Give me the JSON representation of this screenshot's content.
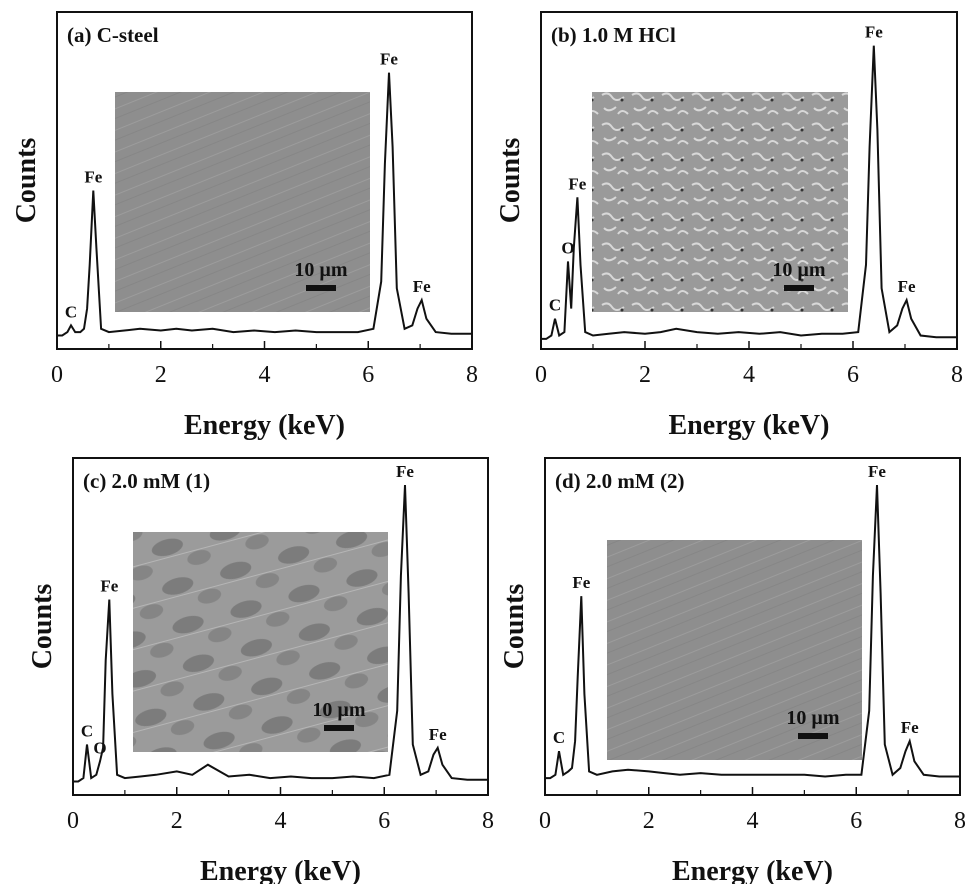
{
  "chart_data": [
    {
      "type": "line",
      "title": "(a) C-steel",
      "xlabel": "Energy (keV)",
      "ylabel": "Counts",
      "xlim": [
        0,
        8
      ],
      "xticks": [
        0,
        2,
        4,
        6,
        8
      ],
      "ylim": [
        0,
        100
      ],
      "x": [
        0,
        0.1,
        0.2,
        0.27,
        0.35,
        0.45,
        0.52,
        0.58,
        0.63,
        0.7,
        0.76,
        0.85,
        1.0,
        1.3,
        1.6,
        2.0,
        2.3,
        2.6,
        3.0,
        3.4,
        3.8,
        4.2,
        4.6,
        5.0,
        5.4,
        5.8,
        6.1,
        6.25,
        6.32,
        6.4,
        6.47,
        6.55,
        6.7,
        6.85,
        6.95,
        7.03,
        7.12,
        7.3,
        7.6,
        8.0
      ],
      "series": [
        {
          "color": "#111111",
          "values": [
            4,
            4,
            5,
            7,
            5,
            5,
            6,
            12,
            25,
            47,
            30,
            6,
            5,
            5.5,
            6,
            5.5,
            6,
            5.5,
            6,
            5,
            5.5,
            5,
            5.5,
            5,
            5,
            5,
            6,
            20,
            55,
            82,
            60,
            18,
            6,
            7,
            12,
            14.5,
            9,
            5,
            4.5,
            4.5
          ]
        }
      ],
      "peak_labels": [
        {
          "text": "C",
          "x": 0.27
        },
        {
          "text": "Fe",
          "x": 0.7
        },
        {
          "text": "Fe",
          "x": 6.4
        },
        {
          "text": "Fe",
          "x": 7.03
        }
      ],
      "inset": {
        "scale_label": "10 µm"
      }
    },
    {
      "type": "line",
      "title": "(b) 1.0 M HCl",
      "xlabel": "Energy (keV)",
      "ylabel": "Counts",
      "xlim": [
        0,
        8
      ],
      "xticks": [
        0,
        2,
        4,
        6,
        8
      ],
      "ylim": [
        0,
        100
      ],
      "x": [
        0,
        0.1,
        0.2,
        0.27,
        0.35,
        0.45,
        0.52,
        0.58,
        0.63,
        0.7,
        0.76,
        0.85,
        1.0,
        1.3,
        1.6,
        2.0,
        2.3,
        2.6,
        3.0,
        3.4,
        3.8,
        4.2,
        4.6,
        5.0,
        5.4,
        5.8,
        6.1,
        6.25,
        6.32,
        6.4,
        6.47,
        6.55,
        6.7,
        6.85,
        6.95,
        7.03,
        7.12,
        7.3,
        7.6,
        8.0
      ],
      "series": [
        {
          "color": "#111111",
          "values": [
            3,
            3,
            4,
            9,
            4,
            5,
            26,
            12,
            30,
            45,
            25,
            5,
            4,
            4.5,
            5,
            4.5,
            5,
            6,
            5,
            4.5,
            5,
            4.5,
            5,
            4,
            4.5,
            4.5,
            5,
            25,
            60,
            90,
            65,
            18,
            5,
            7,
            12,
            14.5,
            9,
            4,
            3.5,
            3.5
          ]
        }
      ],
      "peak_labels": [
        {
          "text": "C",
          "x": 0.27
        },
        {
          "text": "O",
          "x": 0.52
        },
        {
          "text": "Fe",
          "x": 0.7
        },
        {
          "text": "Fe",
          "x": 6.4
        },
        {
          "text": "Fe",
          "x": 7.03
        }
      ],
      "inset": {
        "scale_label": "10 µm"
      }
    },
    {
      "type": "line",
      "title": "(c) 2.0 mM (1)",
      "xlabel": "Energy (keV)",
      "ylabel": "Counts",
      "xlim": [
        0,
        8
      ],
      "xticks": [
        0,
        2,
        4,
        6,
        8
      ],
      "ylim": [
        0,
        100
      ],
      "x": [
        0,
        0.1,
        0.2,
        0.27,
        0.35,
        0.45,
        0.52,
        0.58,
        0.63,
        0.7,
        0.76,
        0.85,
        1.0,
        1.3,
        1.6,
        2.0,
        2.3,
        2.6,
        3.0,
        3.4,
        3.8,
        4.2,
        4.6,
        5.0,
        5.4,
        5.8,
        6.1,
        6.25,
        6.32,
        6.4,
        6.47,
        6.55,
        6.7,
        6.85,
        6.95,
        7.03,
        7.12,
        7.3,
        7.6,
        8.0
      ],
      "series": [
        {
          "color": "#111111",
          "values": [
            4,
            4,
            5,
            15,
            5,
            6,
            10,
            14,
            40,
            58,
            30,
            6,
            5,
            5.5,
            6,
            7,
            6,
            9,
            5.5,
            6,
            5,
            5.5,
            5,
            5,
            5.5,
            5,
            6,
            25,
            65,
            92,
            60,
            15,
            6,
            7,
            12,
            14,
            9,
            5,
            4.5,
            4.5
          ]
        }
      ],
      "peak_labels": [
        {
          "text": "C",
          "x": 0.27
        },
        {
          "text": "O",
          "x": 0.52
        },
        {
          "text": "Fe",
          "x": 0.7
        },
        {
          "text": "Fe",
          "x": 6.4
        },
        {
          "text": "Fe",
          "x": 7.03
        }
      ],
      "inset": {
        "scale_label": "10 µm"
      }
    },
    {
      "type": "line",
      "title": "(d) 2.0 mM (2)",
      "xlabel": "Energy (keV)",
      "ylabel": "Counts",
      "xlim": [
        0,
        8
      ],
      "xticks": [
        0,
        2,
        4,
        6,
        8
      ],
      "ylim": [
        0,
        100
      ],
      "x": [
        0,
        0.1,
        0.2,
        0.27,
        0.35,
        0.45,
        0.52,
        0.58,
        0.63,
        0.7,
        0.76,
        0.85,
        1.0,
        1.3,
        1.6,
        2.0,
        2.3,
        2.6,
        3.0,
        3.4,
        3.8,
        4.2,
        4.6,
        5.0,
        5.4,
        5.8,
        6.1,
        6.25,
        6.32,
        6.4,
        6.47,
        6.55,
        6.7,
        6.85,
        6.95,
        7.03,
        7.12,
        7.3,
        7.6,
        8.0
      ],
      "series": [
        {
          "color": "#111111",
          "values": [
            5,
            5,
            6,
            13,
            6,
            7,
            8,
            16,
            35,
            59,
            30,
            7,
            6,
            7,
            7.5,
            7,
            6.5,
            6,
            6.5,
            6,
            6,
            6,
            6,
            6,
            5.5,
            6,
            6,
            25,
            65,
            92,
            60,
            15,
            6,
            8,
            13,
            16,
            10,
            6,
            5.5,
            5.5
          ]
        }
      ],
      "peak_labels": [
        {
          "text": "C",
          "x": 0.27
        },
        {
          "text": "Fe",
          "x": 0.7
        },
        {
          "text": "Fe",
          "x": 6.4
        },
        {
          "text": "Fe",
          "x": 7.03
        }
      ],
      "inset": {
        "scale_label": "10 µm"
      }
    }
  ]
}
